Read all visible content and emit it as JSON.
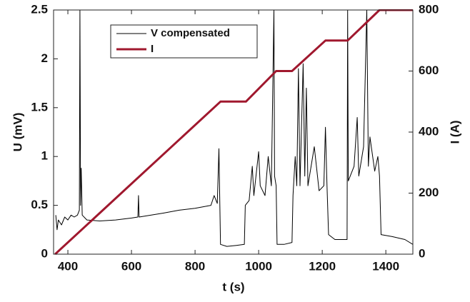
{
  "chart_data": {
    "type": "line",
    "xlabel": "t (s)",
    "ylabel": "U (mV)",
    "y2label": "I (A)",
    "xlim": [
      355,
      1485
    ],
    "xticks": [
      400,
      600,
      800,
      1000,
      1200,
      1400
    ],
    "ylim": [
      0,
      2.5
    ],
    "yticks": [
      0,
      0.5,
      1,
      1.5,
      2,
      2.5
    ],
    "y2lim": [
      0,
      800
    ],
    "y2ticks": [
      0,
      200,
      400,
      600,
      800
    ],
    "legend": "top-center",
    "series": [
      {
        "name": "V compensated",
        "color": "#000000",
        "width": 1,
        "x": [
          362,
          366,
          370,
          380,
          390,
          400,
          410,
          420,
          430,
          436,
          438,
          440,
          442,
          445,
          460,
          500,
          550,
          600,
          620,
          622,
          624,
          700,
          750,
          800,
          850,
          860,
          870,
          875,
          878,
          880,
          900,
          930,
          955,
          958,
          970,
          980,
          985,
          1000,
          1005,
          1020,
          1030,
          1040,
          1048,
          1050,
          1055,
          1058,
          1080,
          1105,
          1108,
          1115,
          1120,
          1125,
          1130,
          1140,
          1145,
          1150,
          1155,
          1175,
          1190,
          1205,
          1210,
          1215,
          1220,
          1240,
          1278,
          1280,
          1282,
          1300,
          1310,
          1315,
          1330,
          1340,
          1345,
          1350,
          1365,
          1375,
          1380,
          1385,
          1420,
          1460,
          1485
        ],
        "values": [
          0.4,
          0.25,
          0.35,
          0.3,
          0.38,
          0.35,
          0.4,
          0.38,
          0.4,
          0.45,
          2.5,
          0.5,
          0.88,
          0.4,
          0.35,
          0.34,
          0.35,
          0.37,
          0.38,
          0.6,
          0.38,
          0.42,
          0.45,
          0.47,
          0.5,
          0.6,
          0.52,
          1.08,
          0.5,
          0.1,
          0.08,
          0.09,
          0.1,
          0.5,
          0.55,
          0.9,
          0.6,
          1.05,
          0.7,
          0.6,
          1.0,
          0.7,
          2.5,
          0.8,
          0.7,
          0.1,
          0.1,
          0.12,
          0.6,
          1.0,
          0.7,
          1.9,
          0.7,
          1.95,
          0.8,
          1.7,
          0.7,
          1.1,
          0.65,
          0.7,
          1.3,
          0.7,
          0.2,
          0.15,
          0.15,
          2.5,
          0.75,
          0.9,
          1.4,
          0.8,
          1.1,
          2.5,
          0.9,
          1.2,
          0.85,
          1.0,
          0.8,
          0.2,
          0.18,
          0.15,
          0.1
        ]
      },
      {
        "name": "I",
        "color": "#a0182e",
        "width": 3,
        "axis": "y2",
        "x": [
          360,
          880,
          960,
          1055,
          1105,
          1210,
          1280,
          1380,
          1485
        ],
        "values": [
          0,
          500,
          500,
          600,
          600,
          700,
          700,
          800,
          800
        ]
      }
    ]
  }
}
